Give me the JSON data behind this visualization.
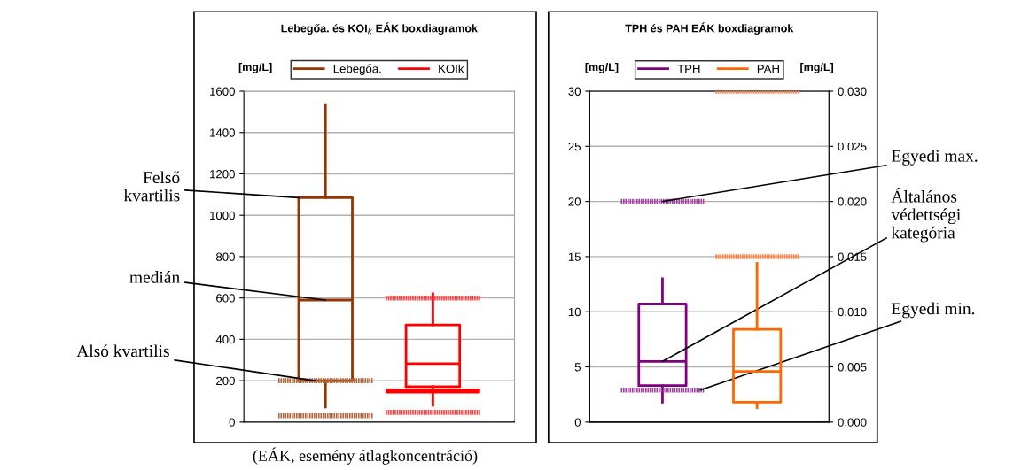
{
  "chart_data": [
    {
      "type": "box",
      "title": "Lebegőa. és KOI$_{k}$ EÁK boxdiagramok",
      "ylabel": "[mg/L]",
      "categories": [
        null,
        null
      ],
      "ylim": [
        0,
        1600
      ],
      "yticks": [
        0,
        200,
        400,
        600,
        800,
        1000,
        1200,
        1400,
        1600
      ],
      "grid": "y",
      "legend": "top",
      "series": [
        {
          "name": "Lebegőa.",
          "color": "#993300",
          "boxes": [
            {
              "low": 73,
              "q1": 200,
              "median": 590,
              "q3": 1085,
              "high": 1535
            },
            null
          ]
        },
        {
          "name": "KOIk",
          "color": "#ff0000",
          "boxes": [
            null,
            {
              "low": 81,
              "q1": 171,
              "median": 282,
              "q3": 470,
              "high": 620
            }
          ]
        }
      ],
      "ref_lines": [
        {
          "axis": "y",
          "value": 200,
          "color": "#b5653a",
          "line_style": "dotted"
        },
        {
          "axis": "y",
          "value": 30,
          "color": "#b5653a",
          "line_style": "dotted"
        },
        {
          "axis": "y",
          "value": 600,
          "color": "#ff4040",
          "line_style": "dotted"
        },
        {
          "axis": "y",
          "value": 150,
          "color": "#ff0000",
          "line_style": "solid"
        },
        {
          "axis": "y",
          "value": 47,
          "color": "#ff4040",
          "line_style": "dotted"
        }
      ],
      "annotations": [
        "Felső\nkvartilis",
        "medián",
        "Alsó kvartilis",
        "(EÁK, esemény átlagkoncentráció)"
      ]
    },
    {
      "type": "box",
      "title": "TPH és PAH EÁK boxdiagramok",
      "ylabel": "[mg/L]",
      "y2label": "[mg/L]",
      "categories": [
        null,
        null
      ],
      "ylim": [
        0,
        30
      ],
      "yticks": [
        0,
        5,
        10,
        15,
        20,
        25,
        30
      ],
      "y2lim": [
        0,
        0.03
      ],
      "y2ticks": [
        {
          "value": 0,
          "label": "0.000"
        },
        {
          "value": 0.005,
          "label": "0.005"
        },
        {
          "value": 0.01,
          "label": "0.010"
        },
        {
          "value": 0.015,
          "label": "0.015"
        },
        {
          "value": 0.02,
          "label": "0.020"
        },
        {
          "value": 0.025,
          "label": "0.025"
        },
        {
          "value": 0.03,
          "label": "0.030"
        }
      ],
      "grid": "y",
      "legend": "top",
      "series": [
        {
          "name": "TPH",
          "color": "#800080",
          "boxes": [
            {
              "low": 1.8,
              "q1": 3.3,
              "median": 5.5,
              "q3": 10.7,
              "high": 13.0
            },
            null
          ]
        },
        {
          "name": "PAH",
          "color": "#ff6600",
          "axis": "y2",
          "boxes": [
            null,
            {
              "low": 0.0013,
              "q1": 0.0018,
              "median": 0.0046,
              "q3": 0.0084,
              "high": 0.0144
            }
          ]
        }
      ],
      "ref_lines": [
        {
          "axis": "y",
          "value": 20,
          "color": "#a040a0",
          "line_style": "dotted"
        },
        {
          "axis": "y",
          "value": 2.9,
          "color": "#a040a0",
          "line_style": "dotted"
        },
        {
          "axis": "y2",
          "value": 0.03,
          "color": "#ff8040",
          "line_style": "dotted"
        },
        {
          "axis": "y2",
          "value": 0.015,
          "color": "#ff8040",
          "line_style": "dotted"
        }
      ],
      "annotations": [
        "Egyedi max.",
        "Általános\nvédettségi\nkategória",
        "Egyedi min."
      ]
    }
  ]
}
